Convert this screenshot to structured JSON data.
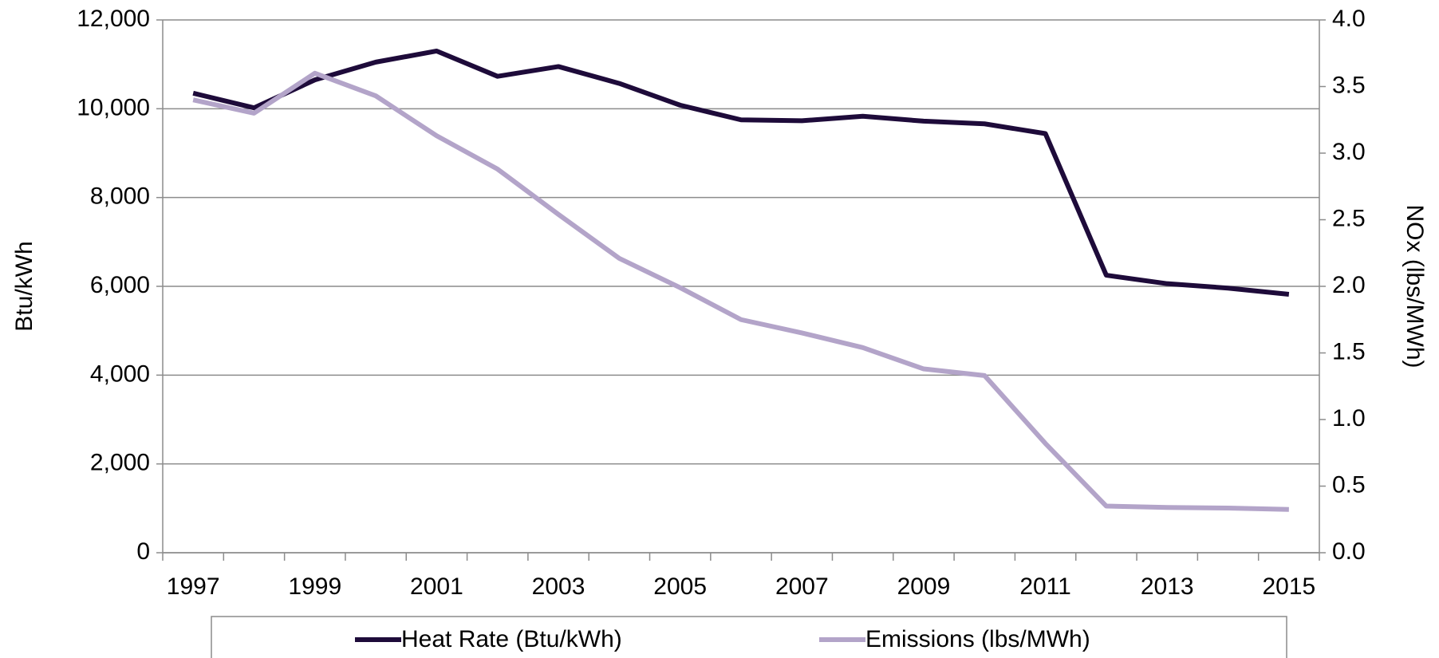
{
  "chart_data": {
    "type": "line",
    "categories": [
      "1997",
      null,
      "1999",
      null,
      "2001",
      null,
      "2003",
      null,
      "2005",
      null,
      "2007",
      null,
      "2009",
      null,
      "2011",
      null,
      "2013",
      null,
      "2015"
    ],
    "series": [
      {
        "name": "Heat Rate (Btu/kWh)",
        "color": "#1e0b3a",
        "axis": "y",
        "values": [
          10350,
          10020,
          10650,
          11050,
          11300,
          10730,
          10950,
          10570,
          10080,
          9750,
          9730,
          9830,
          9720,
          9660,
          9440,
          6250,
          6060,
          5960,
          5820
        ]
      },
      {
        "name": "Emissions (lbs/MWh)",
        "color": "#b3a4c9",
        "axis": "y2",
        "values": [
          3.4,
          3.3,
          3.6,
          3.43,
          3.13,
          2.88,
          2.54,
          2.21,
          1.99,
          1.75,
          1.65,
          1.54,
          1.38,
          1.33,
          0.82,
          0.35,
          0.34,
          0.335,
          0.325
        ]
      }
    ],
    "y_label": "Btu/kWh",
    "y2_label": "NOx (lbs/MWh)",
    "ylim": [
      0,
      12000
    ],
    "yticks": [
      0,
      {
        "value": 2000,
        "label": "2,000"
      },
      {
        "value": 4000,
        "label": "4,000"
      },
      {
        "value": 6000,
        "label": "6,000"
      },
      {
        "value": 8000,
        "label": "8,000"
      },
      {
        "value": 10000,
        "label": "10,000"
      },
      {
        "value": 12000,
        "label": "12,000"
      }
    ],
    "y2lim": [
      0,
      4
    ],
    "y2ticks": [
      {
        "value": 0,
        "label": "0.0"
      },
      {
        "value": 0.5,
        "label": "0.5"
      },
      {
        "value": 1,
        "label": "1.0"
      },
      {
        "value": 1.5,
        "label": "1.5"
      },
      {
        "value": 2,
        "label": "2.0"
      },
      {
        "value": 2.5,
        "label": "2.5"
      },
      {
        "value": 3,
        "label": "3.0"
      },
      {
        "value": 3.5,
        "label": "3.5"
      },
      {
        "value": 4,
        "label": "4.0"
      }
    ],
    "grid": true,
    "legend": "bottom"
  }
}
